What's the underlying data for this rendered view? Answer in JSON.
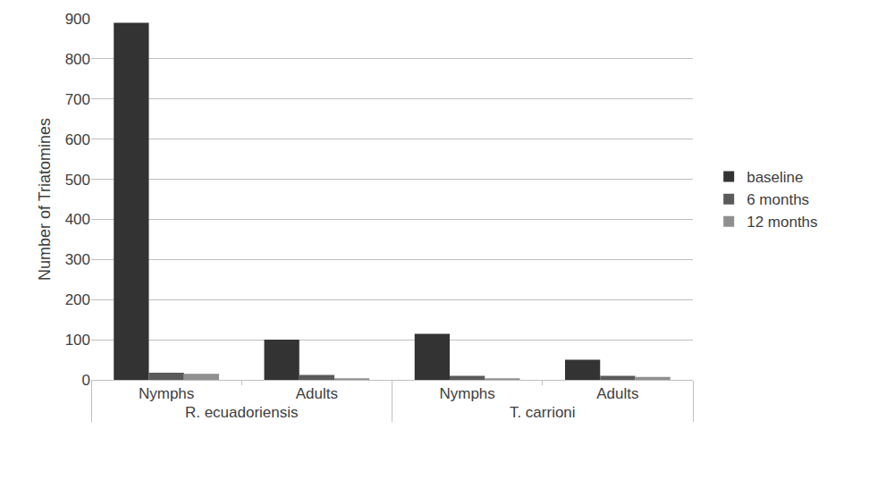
{
  "chart_data": {
    "type": "bar",
    "y_label": "Number of Triatomines",
    "categories": [
      "Nymphs",
      "Adults",
      "Nymphs",
      "Adults"
    ],
    "category_groups": [
      "R. ecuadoriensis",
      "R. ecuadoriensis",
      "T. carrioni",
      "T. carrioni"
    ],
    "series": [
      {
        "name": "baseline",
        "color": "#333333",
        "values": [
          890,
          100,
          115,
          50
        ]
      },
      {
        "name": "6 months",
        "color": "#5a5a5a",
        "values": [
          18,
          12,
          10,
          10
        ]
      },
      {
        "name": "12 months",
        "color": "#8f8f8f",
        "values": [
          15,
          4,
          4,
          7
        ]
      }
    ],
    "ylim": [
      0,
      900
    ],
    "yticks": [
      0,
      100,
      200,
      300,
      400,
      500,
      600,
      700,
      800,
      900
    ],
    "grid": true,
    "legend": "right"
  }
}
